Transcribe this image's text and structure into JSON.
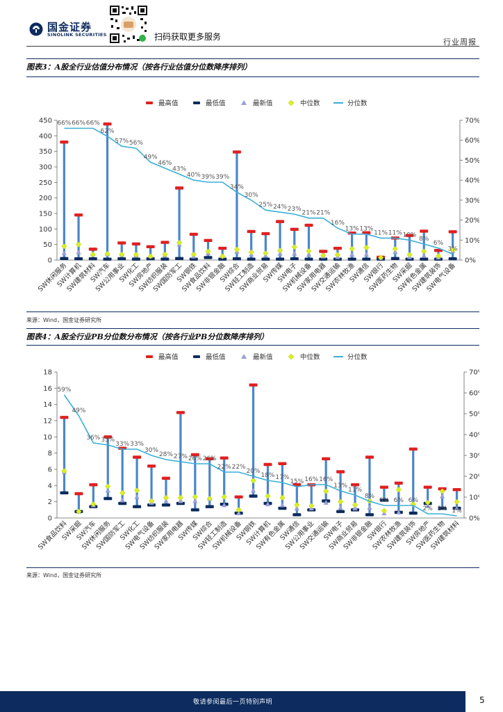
{
  "header": {
    "company_cn": "国金证券",
    "company_en": "SINOLINK SECURITIES",
    "scan_text": "扫码获取更多服务",
    "report_type": "行业周报"
  },
  "figure3": {
    "title": "图表3：A股全行业估值分布情况（按各行业估值分位数降序排列）",
    "source": "来源：Wind，国金证券研究所"
  },
  "figure4": {
    "title": "图表4：A股全行业PB分位数分布情况（按各行业PB分位数降序排列）",
    "source": "来源：Wind，国金证券研究所"
  },
  "footer": {
    "text": "敬请参阅最后一页特别声明",
    "page": "5"
  },
  "colors": {
    "max": "#e02020",
    "min": "#0d2b5e",
    "latest": "#9aa0d6",
    "median": "#d8f020",
    "pct": "#3aaed8",
    "range": "#4a86c8",
    "brand": "#0d2b5e"
  },
  "chart_data": [
    {
      "type": "bar",
      "legend": [
        "最高值",
        "最低值",
        "最新值",
        "中位数",
        "分位数"
      ],
      "legend_position": "top",
      "left_axis": {
        "ticks": [
          0,
          50,
          100,
          150,
          200,
          250,
          300,
          350,
          400,
          450
        ],
        "ylim": [
          0,
          450
        ]
      },
      "right_axis": {
        "ticks": [
          "0%",
          "10%",
          "20%",
          "30%",
          "40%",
          "50%",
          "60%",
          "70%"
        ],
        "ylim": [
          0,
          70
        ]
      },
      "categories": [
        "SW休闲服务",
        "SW计算机",
        "SW建筑材料",
        "SW汽车",
        "SW公用事业",
        "SW化工",
        "SW房地产",
        "SW纺织服装",
        "SW国防军工",
        "SW钢铁",
        "SW食品饮料",
        "SW非银金融",
        "SW综合",
        "SW轻工制造",
        "SW商业贸易",
        "SW传媒",
        "SW电子",
        "SW机械设备",
        "SW家用电器",
        "SW交通运输",
        "SW农林牧渔",
        "SW通信",
        "SW银行",
        "SW医药生物",
        "SW采掘",
        "SW有色金属",
        "SW建筑装饰",
        "SW电气设备"
      ],
      "max": [
        380,
        145,
        35,
        438,
        55,
        52,
        43,
        57,
        232,
        83,
        63,
        38,
        348,
        92,
        85,
        124,
        99,
        112,
        28,
        38,
        87,
        88,
        9,
        71,
        79,
        93,
        31,
        91
      ],
      "min": [
        5,
        4,
        4,
        3,
        4,
        3,
        4,
        3,
        5,
        3,
        8,
        3,
        4,
        3,
        3,
        3,
        4,
        3,
        3,
        3,
        3,
        3,
        3,
        5,
        3,
        3,
        3,
        4
      ],
      "latest": [
        22,
        25,
        20,
        20,
        18,
        15,
        13,
        15,
        50,
        12,
        22,
        13,
        27,
        18,
        15,
        21,
        21,
        18,
        12,
        10,
        18,
        18,
        8,
        26,
        10,
        14,
        9,
        30
      ],
      "median": [
        44,
        50,
        18,
        20,
        18,
        17,
        12,
        18,
        56,
        18,
        28,
        12,
        34,
        25,
        22,
        31,
        42,
        29,
        15,
        17,
        36,
        40,
        8,
        36,
        17,
        28,
        13,
        33
      ],
      "percentile_labels": [
        "66%",
        "66%",
        "66%",
        "62%",
        "57%",
        "56%",
        "49%",
        "46%",
        "43%",
        "40%",
        "39%",
        "39%",
        "34%",
        "30%",
        "25%",
        "24%",
        "23%",
        "21%",
        "21%",
        "16%",
        "13%",
        "13%",
        "11%",
        "11%",
        "10%",
        "8%",
        "6%",
        "3%"
      ],
      "percentile": [
        66,
        66,
        66,
        62,
        57,
        56,
        49,
        46,
        43,
        40,
        39,
        39,
        34,
        30,
        25,
        24,
        23,
        21,
        21,
        16,
        13,
        13,
        11,
        11,
        10,
        8,
        6,
        3
      ]
    },
    {
      "type": "bar",
      "legend": [
        "最高值",
        "最低值",
        "最新值",
        "中位数",
        "分位数"
      ],
      "legend_position": "top",
      "left_axis": {
        "ticks": [
          0,
          2,
          4,
          6,
          8,
          10,
          12,
          14,
          16,
          18
        ],
        "ylim": [
          0,
          18
        ]
      },
      "right_axis": {
        "ticks": [
          "0%",
          "10%",
          "20%",
          "30%",
          "40%",
          "50%",
          "60%",
          "70%"
        ],
        "ylim": [
          0,
          70
        ]
      },
      "categories": [
        "SW食品饮料",
        "SW采掘",
        "SW汽车",
        "SW休闲服务",
        "SW国防军工",
        "SW化工",
        "SW电气设备",
        "SW纺织服装",
        "SW家用电器",
        "SW传媒",
        "SW综合",
        "SW轻工制造",
        "SW机械设备",
        "SW钢铁",
        "SW计算机",
        "SW有色金属",
        "SW通信",
        "SW公用事业",
        "SW交通运输",
        "SW电子",
        "SW商业贸易",
        "SW非银金融",
        "SW银行",
        "SW农林牧渔",
        "SW建筑装饰",
        "SW房地产",
        "SW医药生物",
        "SW建筑材料"
      ],
      "max": [
        12.4,
        3.0,
        4.1,
        10.0,
        8.6,
        7.5,
        6.4,
        4.9,
        13.0,
        7.8,
        7.3,
        7.4,
        2.6,
        16.4,
        6.6,
        6.7,
        4.1,
        4.1,
        7.3,
        5.7,
        4.1,
        7.5,
        3.8,
        4.3,
        8.5,
        3.8,
        3.6,
        3.5
      ],
      "min": [
        3.1,
        0.8,
        1.4,
        2.4,
        1.8,
        1.4,
        1.6,
        1.6,
        1.8,
        1.0,
        1.4,
        1.7,
        0.6,
        2.7,
        1.8,
        1.2,
        0.4,
        1.0,
        2.1,
        0.8,
        1.0,
        0.4,
        2.2,
        0.7,
        0.6,
        1.8,
        1.2,
        1.2
      ],
      "latest": [
        5.7,
        0.8,
        1.6,
        3.4,
        2.2,
        2.6,
        1.9,
        2.1,
        2.1,
        2.1,
        2.4,
        1.6,
        0.6,
        3.4,
        1.7,
        1.6,
        1.2,
        1.2,
        1.9,
        1.3,
        1.2,
        1.3,
        0.6,
        0.7,
        1.8,
        1.5,
        2.7,
        1.2
      ],
      "median": [
        5.8,
        0.8,
        1.7,
        3.9,
        3.1,
        3.4,
        2.1,
        2.5,
        2.5,
        2.6,
        2.4,
        2.6,
        1.0,
        4.6,
        2.7,
        2.5,
        1.6,
        1.5,
        3.3,
        2.0,
        1.6,
        2.1,
        0.9,
        3.5,
        1.7,
        1.9,
        3.3,
        2.0
      ],
      "percentile_labels": [
        "59%",
        "49%",
        "36%",
        "35%",
        "33%",
        "33%",
        "30%",
        "28%",
        "27%",
        "26%",
        "26%",
        "22%",
        "22%",
        "20%",
        "18%",
        "17%",
        "15%",
        "16%",
        "16%",
        "13%",
        "11%",
        "8%",
        "6%",
        "6%",
        "6%",
        "2%",
        "2%",
        "1%"
      ],
      "percentile": [
        59,
        49,
        36,
        35,
        33,
        33,
        30,
        28,
        27,
        26,
        26,
        22,
        22,
        20,
        18,
        17,
        15,
        16,
        16,
        13,
        11,
        8,
        6,
        6,
        6,
        2,
        2,
        1
      ]
    }
  ]
}
